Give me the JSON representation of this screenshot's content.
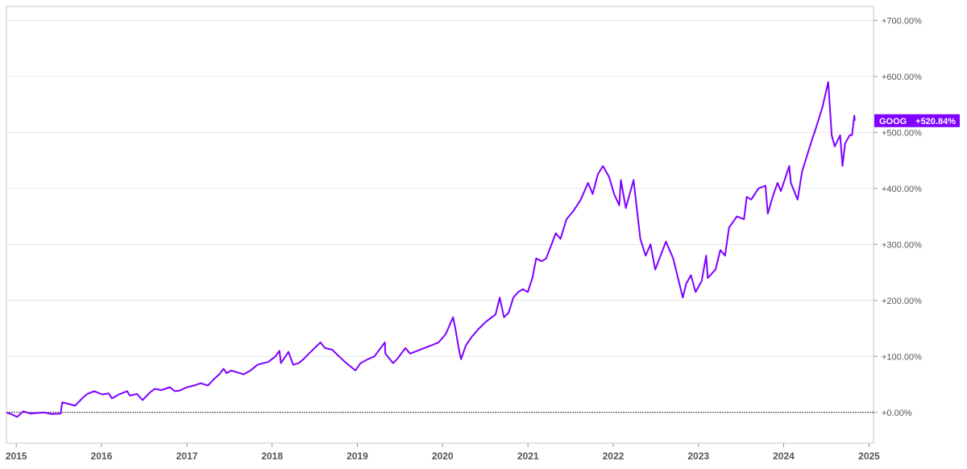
{
  "colors": {
    "series": "#7f00ff",
    "grid": "#e6e6e6",
    "frame": "#c8c8c8",
    "text": "#555555",
    "zero_line": "#333333"
  },
  "chart_data": {
    "type": "line",
    "title": "",
    "xlabel": "",
    "ylabel": "",
    "grid": true,
    "x_ticks": [
      "2015",
      "2016",
      "2017",
      "2018",
      "2019",
      "2020",
      "2021",
      "2022",
      "2023",
      "2024",
      "2025"
    ],
    "y_ticks": [
      "+0.00%",
      "+100.00%",
      "+200.00%",
      "+300.00%",
      "+400.00%",
      "+500.00%",
      "+600.00%",
      "+700.00%"
    ],
    "xlim": [
      "2014-11-20",
      "2025-01-20"
    ],
    "ylim": [
      -55,
      725
    ],
    "series": [
      {
        "name": "GOOG",
        "last_value_label": "+520.84%",
        "color": "#7f00ff",
        "points": [
          [
            "2014-11-20",
            0
          ],
          [
            "2014-12-10",
            -3
          ],
          [
            "2015-01-05",
            -8
          ],
          [
            "2015-02-01",
            2
          ],
          [
            "2015-03-01",
            -2
          ],
          [
            "2015-04-01",
            -1
          ],
          [
            "2015-05-01",
            0
          ],
          [
            "2015-06-01",
            -3
          ],
          [
            "2015-07-10",
            -2
          ],
          [
            "2015-07-17",
            18
          ],
          [
            "2015-08-15",
            15
          ],
          [
            "2015-09-10",
            12
          ],
          [
            "2015-10-10",
            25
          ],
          [
            "2015-11-01",
            33
          ],
          [
            "2015-12-01",
            38
          ],
          [
            "2016-01-05",
            32
          ],
          [
            "2016-02-01",
            34
          ],
          [
            "2016-02-15",
            25
          ],
          [
            "2016-03-15",
            32
          ],
          [
            "2016-04-20",
            38
          ],
          [
            "2016-05-01",
            30
          ],
          [
            "2016-06-01",
            33
          ],
          [
            "2016-06-25",
            22
          ],
          [
            "2016-07-25",
            35
          ],
          [
            "2016-08-15",
            42
          ],
          [
            "2016-09-15",
            40
          ],
          [
            "2016-10-20",
            45
          ],
          [
            "2016-11-10",
            38
          ],
          [
            "2016-12-01",
            39
          ],
          [
            "2017-01-01",
            45
          ],
          [
            "2017-02-01",
            48
          ],
          [
            "2017-03-01",
            52
          ],
          [
            "2017-04-01",
            48
          ],
          [
            "2017-04-28",
            60
          ],
          [
            "2017-05-20",
            68
          ],
          [
            "2017-06-07",
            78
          ],
          [
            "2017-06-20",
            70
          ],
          [
            "2017-07-10",
            75
          ],
          [
            "2017-08-01",
            72
          ],
          [
            "2017-09-01",
            68
          ],
          [
            "2017-10-01",
            75
          ],
          [
            "2017-10-30",
            85
          ],
          [
            "2017-11-15",
            87
          ],
          [
            "2017-12-15",
            90
          ],
          [
            "2018-01-15",
            100
          ],
          [
            "2018-02-01",
            110
          ],
          [
            "2018-02-08",
            88
          ],
          [
            "2018-03-12",
            108
          ],
          [
            "2018-04-01",
            85
          ],
          [
            "2018-04-25",
            88
          ],
          [
            "2018-05-15",
            95
          ],
          [
            "2018-06-15",
            108
          ],
          [
            "2018-07-27",
            125
          ],
          [
            "2018-08-15",
            115
          ],
          [
            "2018-09-15",
            112
          ],
          [
            "2018-10-15",
            100
          ],
          [
            "2018-11-15",
            88
          ],
          [
            "2018-12-24",
            75
          ],
          [
            "2019-01-15",
            88
          ],
          [
            "2019-02-15",
            95
          ],
          [
            "2019-03-15",
            100
          ],
          [
            "2019-04-29",
            125
          ],
          [
            "2019-05-01",
            105
          ],
          [
            "2019-06-03",
            88
          ],
          [
            "2019-06-20",
            95
          ],
          [
            "2019-07-26",
            115
          ],
          [
            "2019-08-15",
            105
          ],
          [
            "2019-09-15",
            110
          ],
          [
            "2019-10-15",
            115
          ],
          [
            "2019-11-15",
            120
          ],
          [
            "2019-12-15",
            125
          ],
          [
            "2020-01-15",
            140
          ],
          [
            "2020-02-15",
            170
          ],
          [
            "2020-02-25",
            150
          ],
          [
            "2020-03-10",
            115
          ],
          [
            "2020-03-20",
            95
          ],
          [
            "2020-04-10",
            120
          ],
          [
            "2020-05-05",
            135
          ],
          [
            "2020-06-05",
            150
          ],
          [
            "2020-07-05",
            162
          ],
          [
            "2020-08-15",
            175
          ],
          [
            "2020-09-02",
            205
          ],
          [
            "2020-09-20",
            170
          ],
          [
            "2020-10-10",
            178
          ],
          [
            "2020-10-30",
            205
          ],
          [
            "2020-11-20",
            215
          ],
          [
            "2020-12-10",
            220
          ],
          [
            "2020-12-31",
            215
          ],
          [
            "2021-01-20",
            240
          ],
          [
            "2021-02-05",
            275
          ],
          [
            "2021-03-01",
            270
          ],
          [
            "2021-03-20",
            275
          ],
          [
            "2021-04-30",
            320
          ],
          [
            "2021-05-20",
            310
          ],
          [
            "2021-06-15",
            345
          ],
          [
            "2021-07-15",
            360
          ],
          [
            "2021-08-15",
            380
          ],
          [
            "2021-09-15",
            410
          ],
          [
            "2021-10-05",
            390
          ],
          [
            "2021-10-27",
            425
          ],
          [
            "2021-11-18",
            440
          ],
          [
            "2021-12-15",
            420
          ],
          [
            "2022-01-05",
            390
          ],
          [
            "2022-01-27",
            370
          ],
          [
            "2022-02-03",
            415
          ],
          [
            "2022-02-24",
            365
          ],
          [
            "2022-03-29",
            415
          ],
          [
            "2022-04-27",
            310
          ],
          [
            "2022-05-20",
            280
          ],
          [
            "2022-06-10",
            300
          ],
          [
            "2022-06-30",
            255
          ],
          [
            "2022-08-15",
            305
          ],
          [
            "2022-09-15",
            275
          ],
          [
            "2022-10-26",
            205
          ],
          [
            "2022-11-10",
            230
          ],
          [
            "2022-11-30",
            245
          ],
          [
            "2022-12-20",
            215
          ],
          [
            "2023-01-15",
            235
          ],
          [
            "2023-02-03",
            280
          ],
          [
            "2023-02-10",
            240
          ],
          [
            "2023-03-15",
            255
          ],
          [
            "2023-04-05",
            290
          ],
          [
            "2023-04-25",
            280
          ],
          [
            "2023-05-12",
            330
          ],
          [
            "2023-06-15",
            350
          ],
          [
            "2023-07-15",
            345
          ],
          [
            "2023-07-27",
            385
          ],
          [
            "2023-08-15",
            380
          ],
          [
            "2023-09-15",
            400
          ],
          [
            "2023-10-15",
            405
          ],
          [
            "2023-10-25",
            355
          ],
          [
            "2023-11-15",
            385
          ],
          [
            "2023-12-06",
            410
          ],
          [
            "2023-12-20",
            395
          ],
          [
            "2024-01-25",
            440
          ],
          [
            "2024-02-01",
            410
          ],
          [
            "2024-03-01",
            380
          ],
          [
            "2024-03-20",
            430
          ],
          [
            "2024-04-26",
            480
          ],
          [
            "2024-05-20",
            510
          ],
          [
            "2024-06-15",
            545
          ],
          [
            "2024-07-10",
            590
          ],
          [
            "2024-07-25",
            495
          ],
          [
            "2024-08-07",
            475
          ],
          [
            "2024-08-30",
            495
          ],
          [
            "2024-09-09",
            440
          ],
          [
            "2024-09-20",
            480
          ],
          [
            "2024-10-10",
            495
          ],
          [
            "2024-10-20",
            495
          ],
          [
            "2024-10-30",
            530
          ],
          [
            "2024-11-01",
            521
          ]
        ]
      }
    ]
  }
}
